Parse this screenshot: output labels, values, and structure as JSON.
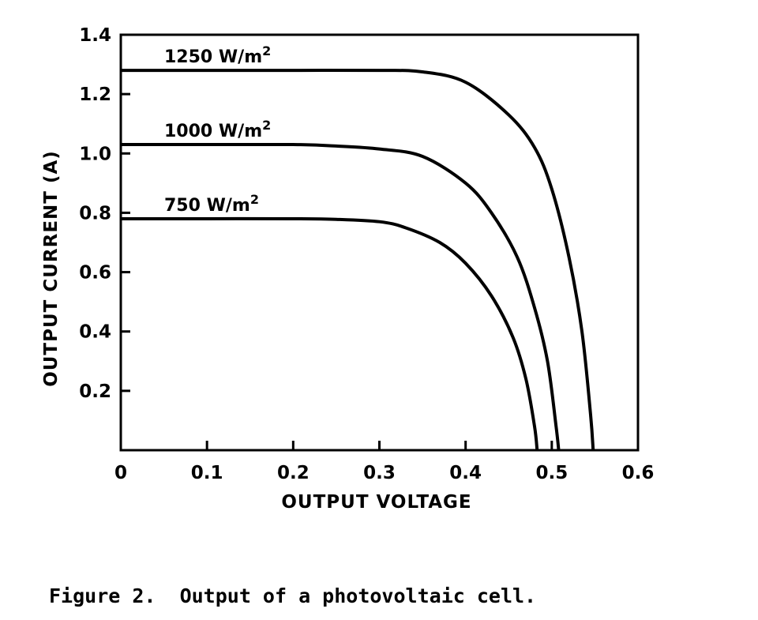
{
  "figure": {
    "caption": "Figure 2.  Output of a photovoltaic cell."
  },
  "chart_data": {
    "type": "line",
    "title": "",
    "xlabel": "OUTPUT VOLTAGE",
    "ylabel": "OUTPUT CURRENT (A)",
    "xlim": [
      0,
      0.6
    ],
    "ylim": [
      0,
      1.4
    ],
    "x_ticks": [
      "0",
      "0.1",
      "0.2",
      "0.3",
      "0.4",
      "0.5",
      "0.6"
    ],
    "y_ticks": [
      "0.2",
      "0.4",
      "0.6",
      "0.8",
      "1.0",
      "1.2",
      "1.4"
    ],
    "grid": false,
    "legend": "inline labels above each curve",
    "series": [
      {
        "name": "1250 W/m2",
        "label_main": "1250  W/m",
        "label_sup": "2",
        "x": [
          0,
          0.1,
          0.2,
          0.3,
          0.35,
          0.4,
          0.45,
          0.48,
          0.5,
          0.52,
          0.535,
          0.545,
          0.548
        ],
        "y": [
          1.28,
          1.28,
          1.28,
          1.28,
          1.275,
          1.24,
          1.13,
          1.02,
          0.88,
          0.65,
          0.4,
          0.12,
          0.0
        ]
      },
      {
        "name": "1000 W/m2",
        "label_main": "1000  W/m",
        "label_sup": "2",
        "x": [
          0,
          0.1,
          0.2,
          0.25,
          0.3,
          0.35,
          0.4,
          0.43,
          0.46,
          0.48,
          0.495,
          0.505,
          0.508
        ],
        "y": [
          1.03,
          1.03,
          1.03,
          1.025,
          1.015,
          0.99,
          0.9,
          0.8,
          0.65,
          0.48,
          0.3,
          0.08,
          0.0
        ]
      },
      {
        "name": "750 W/m2",
        "label_main": "750  W/m",
        "label_sup": "2",
        "x": [
          0,
          0.1,
          0.2,
          0.25,
          0.3,
          0.33,
          0.37,
          0.4,
          0.43,
          0.455,
          0.47,
          0.48,
          0.483
        ],
        "y": [
          0.78,
          0.78,
          0.78,
          0.778,
          0.77,
          0.75,
          0.7,
          0.63,
          0.52,
          0.38,
          0.24,
          0.08,
          0.0
        ]
      }
    ]
  }
}
